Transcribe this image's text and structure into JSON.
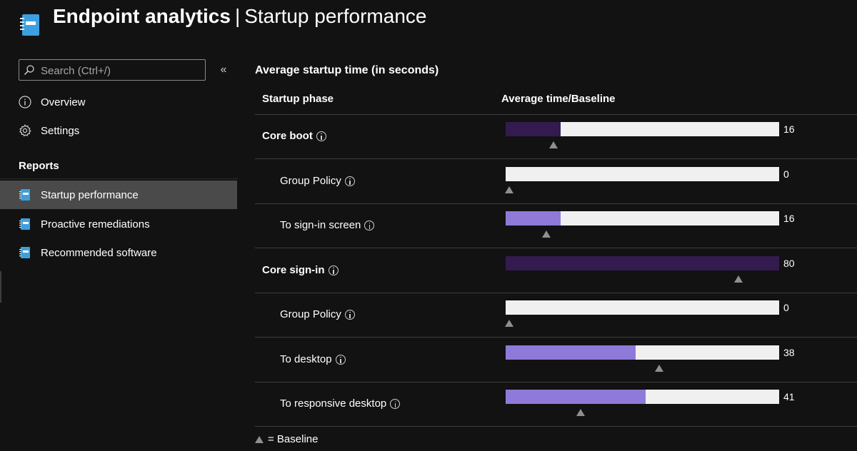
{
  "header": {
    "title_main": "Endpoint analytics",
    "title_separator": "|",
    "title_sub": "Startup performance",
    "app_icon": "notebook-icon"
  },
  "sidebar": {
    "search_placeholder": "Search (Ctrl+/)",
    "collapse_label": "«",
    "items": [
      {
        "label": "Overview",
        "icon": "info-icon"
      },
      {
        "label": "Settings",
        "icon": "gear-icon"
      }
    ],
    "reports_label": "Reports",
    "reports": [
      {
        "label": "Startup performance",
        "icon": "notebook-icon",
        "active": true
      },
      {
        "label": "Proactive remediations",
        "icon": "notebook-icon",
        "active": false
      },
      {
        "label": "Recommended software",
        "icon": "notebook-icon",
        "active": false
      }
    ]
  },
  "main": {
    "title": "Average startup time (in seconds)",
    "col_phase": "Startup phase",
    "col_time": "Average time/Baseline",
    "legend": "= Baseline",
    "scale_max": 80,
    "rows": [
      {
        "phase": "Core boot",
        "bold": true,
        "value": 16,
        "value_label": "16",
        "baseline": 14,
        "color": "#341b4f"
      },
      {
        "phase": "Group Policy",
        "bold": false,
        "value": 0,
        "value_label": "0",
        "baseline": 1,
        "color": "#8f7ad9"
      },
      {
        "phase": "To sign-in screen",
        "bold": false,
        "value": 16,
        "value_label": "16",
        "baseline": 12,
        "color": "#8f7ad9"
      },
      {
        "phase": "Core sign-in",
        "bold": true,
        "value": 80,
        "value_label": "80",
        "baseline": 68,
        "color": "#341b4f"
      },
      {
        "phase": "Group Policy",
        "bold": false,
        "value": 0,
        "value_label": "0",
        "baseline": 1,
        "color": "#8f7ad9"
      },
      {
        "phase": "To desktop",
        "bold": false,
        "value": 38,
        "value_label": "38",
        "baseline": 45,
        "color": "#8f7ad9"
      },
      {
        "phase": "To responsive desktop",
        "bold": false,
        "value": 41,
        "value_label": "41",
        "baseline": 22,
        "color": "#8f7ad9"
      }
    ]
  }
}
